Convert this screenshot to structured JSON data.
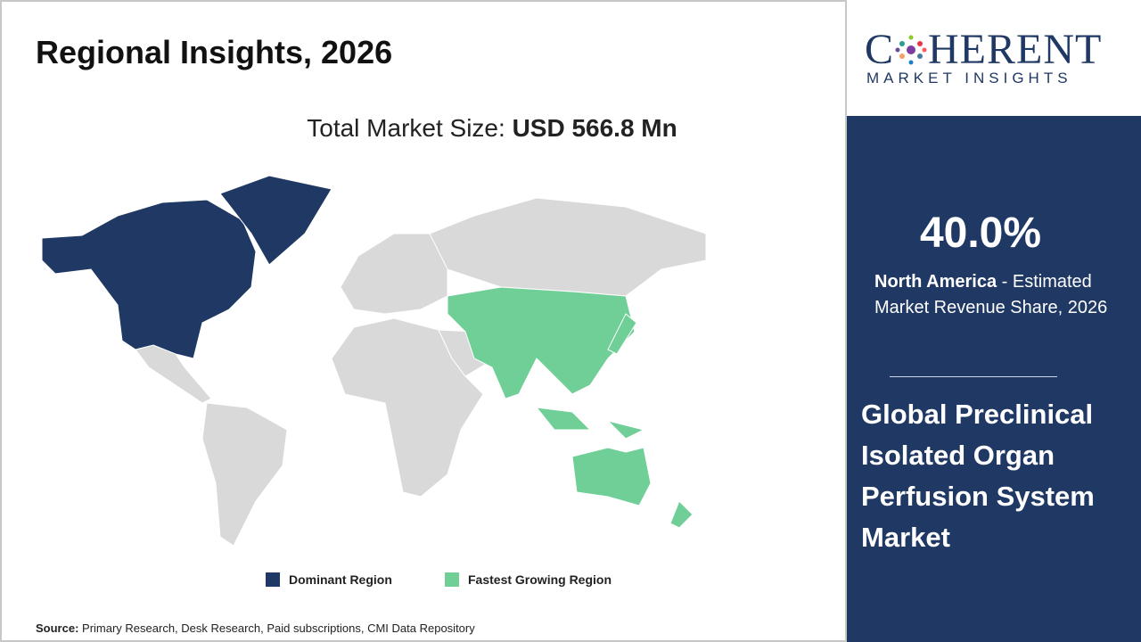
{
  "header": {
    "title": "Regional Insights, 2026"
  },
  "market_size": {
    "label": "Total Market Size:",
    "value": "USD 566.8 Mn"
  },
  "legend": {
    "dominant": "Dominant Region",
    "fastest": "Fastest Growing Region"
  },
  "source": {
    "label": "Source:",
    "text": "Primary Research, Desk Research, Paid subscriptions, CMI Data Repository"
  },
  "logo": {
    "name_start": "C",
    "name_end": "HERENT",
    "tagline": "MARKET INSIGHTS"
  },
  "stat": {
    "value": "40.0%",
    "region": "North America",
    "description": " - Estimated Market Revenue Share, 2026"
  },
  "market_name": "Global Preclinical Isolated Organ Perfusion System Market"
}
